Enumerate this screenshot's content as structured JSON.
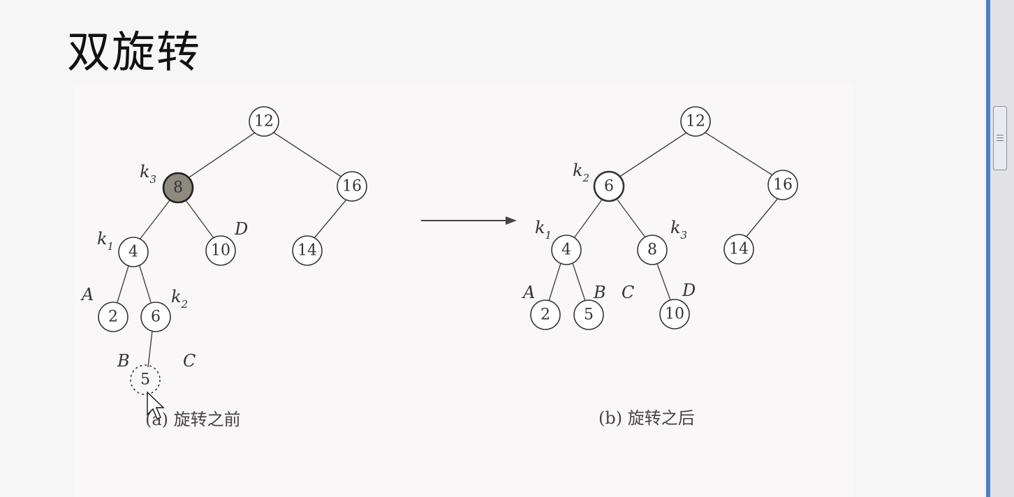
{
  "title": "双旋转",
  "arrow": "right-arrow",
  "before": {
    "caption": "(a) 旋转之前",
    "nodes": [
      "12",
      "8",
      "16",
      "4",
      "10",
      "14",
      "2",
      "6",
      "5"
    ],
    "labels": {
      "k3": "k",
      "k3_sub": "3",
      "k1": "k",
      "k1_sub": "1",
      "k2": "k",
      "k2_sub": "2",
      "A": "A",
      "B": "B",
      "C": "C",
      "D": "D"
    }
  },
  "after": {
    "caption": "(b) 旋转之后",
    "nodes": [
      "12",
      "6",
      "16",
      "4",
      "8",
      "14",
      "2",
      "5",
      "10"
    ],
    "labels": {
      "k2": "k",
      "k2_sub": "2",
      "k1": "k",
      "k1_sub": "1",
      "k3": "k",
      "k3_sub": "3",
      "A": "A",
      "B": "B",
      "C": "C",
      "D": "D"
    }
  },
  "colors": {
    "shaded_node": "#8f8a80",
    "scrollbar_accent": "#4d7fc4"
  }
}
